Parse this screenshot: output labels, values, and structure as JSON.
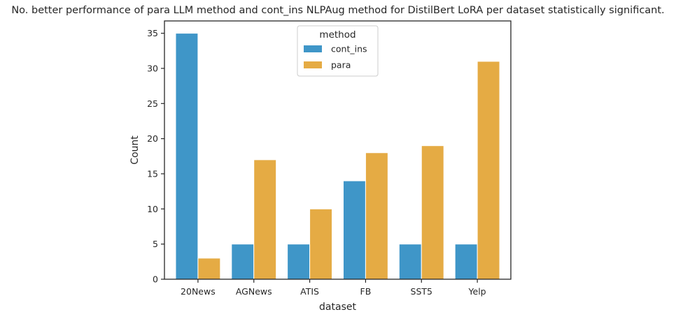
{
  "chart_data": {
    "type": "bar",
    "title": "No. better performance of para LLM method and cont_ins NLPAug method for DistilBert LoRA per dataset statistically significant.",
    "xlabel": "dataset",
    "ylabel": "Count",
    "categories": [
      "20News",
      "AGNews",
      "ATIS",
      "FB",
      "SST5",
      "Yelp"
    ],
    "series": [
      {
        "name": "cont_ins",
        "color": "#3f96c8",
        "values": [
          35,
          5,
          5,
          14,
          5,
          5
        ]
      },
      {
        "name": "para",
        "color": "#e5ab44",
        "values": [
          3,
          17,
          10,
          18,
          19,
          31
        ]
      }
    ],
    "ylim": [
      0,
      36.75
    ],
    "yticks": [
      0,
      5,
      10,
      15,
      20,
      25,
      30,
      35
    ],
    "grid": false,
    "legend": {
      "title": "method",
      "position": "top-center"
    }
  }
}
